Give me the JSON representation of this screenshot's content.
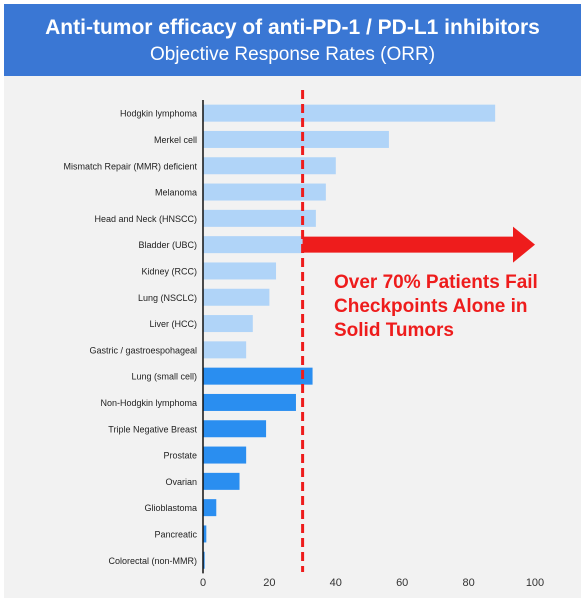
{
  "header": {
    "title": "Anti-tumor efficacy of anti-PD-1 / PD-L1 inhibitors",
    "subtitle": "Objective Response Rates (ORR)",
    "background_color": "#3a77d4"
  },
  "callout": {
    "lines": [
      "Over 70% Patients Fail",
      "Checkpoints Alone in",
      "Solid Tumors"
    ],
    "color": "#ee1c1c"
  },
  "chart_data": {
    "type": "bar",
    "orientation": "horizontal",
    "title": "Anti-tumor efficacy of anti-PD-1 / PD-L1 inhibitors",
    "subtitle": "Objective Response Rates (ORR)",
    "categories": [
      "Hodgkin lymphoma",
      "Merkel cell",
      "Mismatch Repair (MMR) deficient",
      "Melanoma",
      "Head and Neck (HNSCC)",
      "Bladder (UBC)",
      "Kidney (RCC)",
      "Lung (NSCLC)",
      "Liver (HCC)",
      "Gastric / gastroespohageal",
      "Lung (small cell)",
      "Non-Hodgkin lymphoma",
      "Triple Negative Breast",
      "Prostate",
      "Ovarian",
      "Glioblastoma",
      "Pancreatic",
      "Colorectal (non-MMR)"
    ],
    "values": [
      88,
      56,
      40,
      37,
      34,
      30,
      22,
      20,
      15,
      13,
      33,
      28,
      19,
      13,
      11,
      4,
      1,
      0.5
    ],
    "bar_colors": [
      "#b0d4f8",
      "#b0d4f8",
      "#b0d4f8",
      "#b0d4f8",
      "#b0d4f8",
      "#b0d4f8",
      "#b0d4f8",
      "#b0d4f8",
      "#b0d4f8",
      "#b0d4f8",
      "#2a8ef0",
      "#2a8ef0",
      "#2a8ef0",
      "#2a8ef0",
      "#2a8ef0",
      "#2a8ef0",
      "#2a8ef0",
      "#2a8ef0"
    ],
    "x_ticks": [
      0,
      20,
      40,
      60,
      80,
      100
    ],
    "xlim": [
      0,
      100
    ],
    "reference_line": {
      "value": 30,
      "style": "dashed",
      "color": "#ee1c1c"
    },
    "arrow": {
      "from": 30,
      "to": 100,
      "color": "#ee1c1c"
    },
    "grid": false,
    "legend": "none",
    "xlabel": "",
    "ylabel": ""
  }
}
